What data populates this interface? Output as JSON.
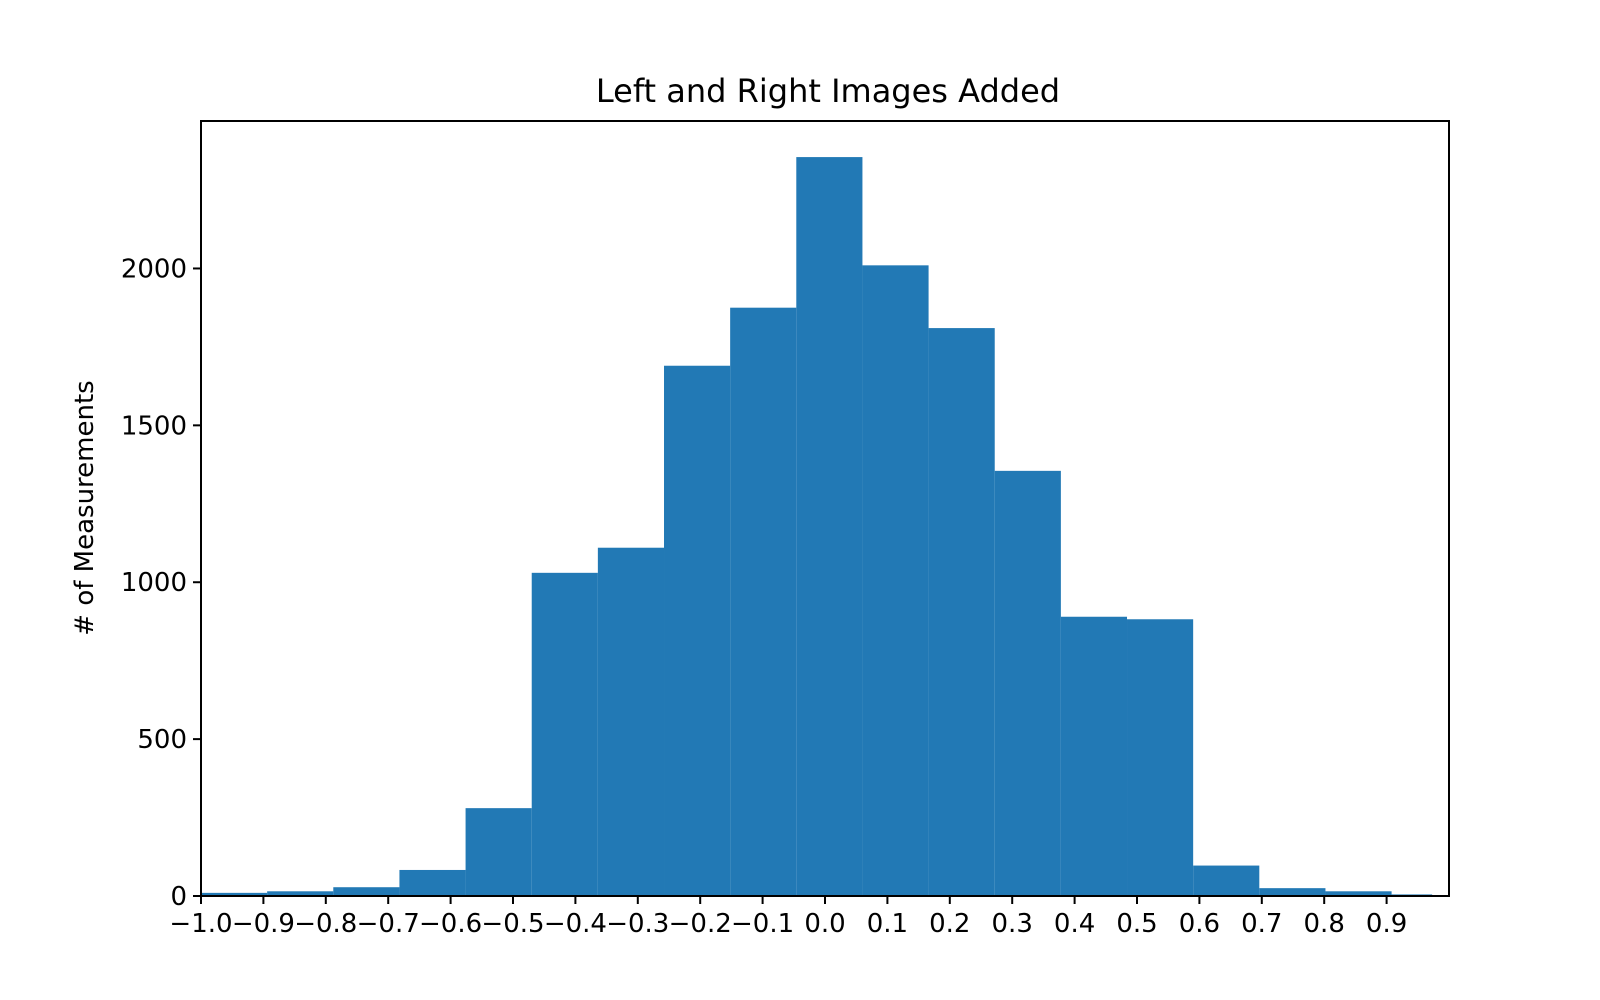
{
  "chart_data": {
    "type": "bar",
    "title": "Left and Right Images Added",
    "xlabel": "",
    "ylabel": "# of Measurements",
    "xlim": [
      -1.0,
      1.0
    ],
    "ylim": [
      0,
      2470
    ],
    "grid": false,
    "bar_color": "#2279b5",
    "bins": [
      {
        "x0": -1.0,
        "x1": -0.894,
        "value": 10
      },
      {
        "x0": -0.894,
        "x1": -0.788,
        "value": 15
      },
      {
        "x0": -0.788,
        "x1": -0.682,
        "value": 28
      },
      {
        "x0": -0.682,
        "x1": -0.576,
        "value": 83
      },
      {
        "x0": -0.576,
        "x1": -0.47,
        "value": 280
      },
      {
        "x0": -0.47,
        "x1": -0.364,
        "value": 1030
      },
      {
        "x0": -0.364,
        "x1": -0.258,
        "value": 1110
      },
      {
        "x0": -0.258,
        "x1": -0.152,
        "value": 1690
      },
      {
        "x0": -0.152,
        "x1": -0.046,
        "value": 1875
      },
      {
        "x0": -0.046,
        "x1": 0.06,
        "value": 2355
      },
      {
        "x0": 0.06,
        "x1": 0.166,
        "value": 2010
      },
      {
        "x0": 0.166,
        "x1": 0.272,
        "value": 1810
      },
      {
        "x0": 0.272,
        "x1": 0.378,
        "value": 1355
      },
      {
        "x0": 0.378,
        "x1": 0.484,
        "value": 890
      },
      {
        "x0": 0.484,
        "x1": 0.59,
        "value": 882
      },
      {
        "x0": 0.59,
        "x1": 0.696,
        "value": 97
      },
      {
        "x0": 0.696,
        "x1": 0.802,
        "value": 25
      },
      {
        "x0": 0.802,
        "x1": 0.908,
        "value": 15
      },
      {
        "x0": 0.908,
        "x1": 0.973,
        "value": 5
      }
    ],
    "x_ticks": [
      {
        "value": -1.0,
        "label": "−1.0"
      },
      {
        "value": -0.9,
        "label": "−0.9"
      },
      {
        "value": -0.8,
        "label": "−0.8"
      },
      {
        "value": -0.7,
        "label": "−0.7"
      },
      {
        "value": -0.6,
        "label": "−0.6"
      },
      {
        "value": -0.5,
        "label": "−0.5"
      },
      {
        "value": -0.4,
        "label": "−0.4"
      },
      {
        "value": -0.3,
        "label": "−0.3"
      },
      {
        "value": -0.2,
        "label": "−0.2"
      },
      {
        "value": -0.1,
        "label": "−0.1"
      },
      {
        "value": 0.0,
        "label": "0.0"
      },
      {
        "value": 0.1,
        "label": "0.1"
      },
      {
        "value": 0.2,
        "label": "0.2"
      },
      {
        "value": 0.3,
        "label": "0.3"
      },
      {
        "value": 0.4,
        "label": "0.4"
      },
      {
        "value": 0.5,
        "label": "0.5"
      },
      {
        "value": 0.6,
        "label": "0.6"
      },
      {
        "value": 0.7,
        "label": "0.7"
      },
      {
        "value": 0.8,
        "label": "0.8"
      },
      {
        "value": 0.9,
        "label": "0.9"
      }
    ],
    "y_ticks": [
      {
        "value": 0,
        "label": "0"
      },
      {
        "value": 500,
        "label": "500"
      },
      {
        "value": 1000,
        "label": "1000"
      },
      {
        "value": 1500,
        "label": "1500"
      },
      {
        "value": 2000,
        "label": "2000"
      }
    ]
  }
}
